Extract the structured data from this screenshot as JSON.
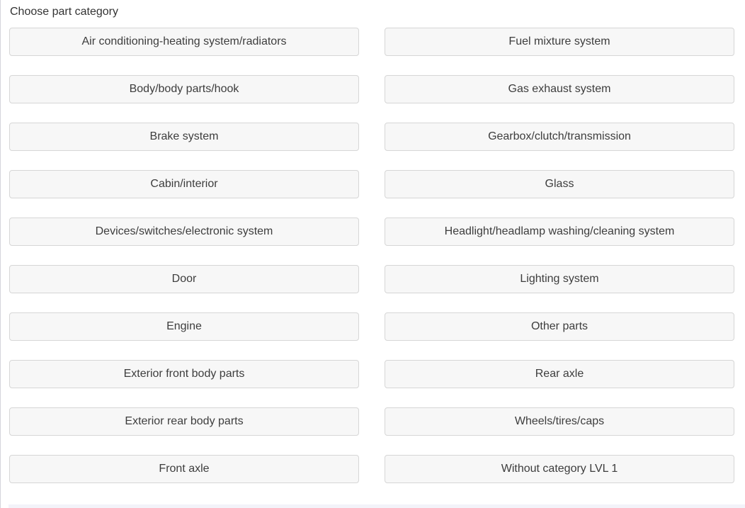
{
  "page": {
    "title": "Choose part category"
  },
  "colors": {
    "page_bg": "#ffffff",
    "button_bg": "#f7f7f7",
    "button_border": "#d6d6d6",
    "button_text": "#3d3d3d",
    "title_text": "#333333",
    "left_edge_line": "#d4d4dc",
    "bottom_strip": "#f3f3f9"
  },
  "categories": {
    "left": [
      "Air conditioning-heating system/radiators",
      "Body/body parts/hook",
      "Brake system",
      "Cabin/interior",
      "Devices/switches/electronic system",
      "Door",
      "Engine",
      "Exterior front body parts",
      "Exterior rear body parts",
      "Front axle"
    ],
    "right": [
      "Fuel mixture system",
      "Gas exhaust system",
      "Gearbox/clutch/transmission",
      "Glass",
      "Headlight/headlamp washing/cleaning system",
      "Lighting system",
      "Other parts",
      "Rear axle",
      "Wheels/tires/caps",
      "Without category LVL 1"
    ]
  }
}
